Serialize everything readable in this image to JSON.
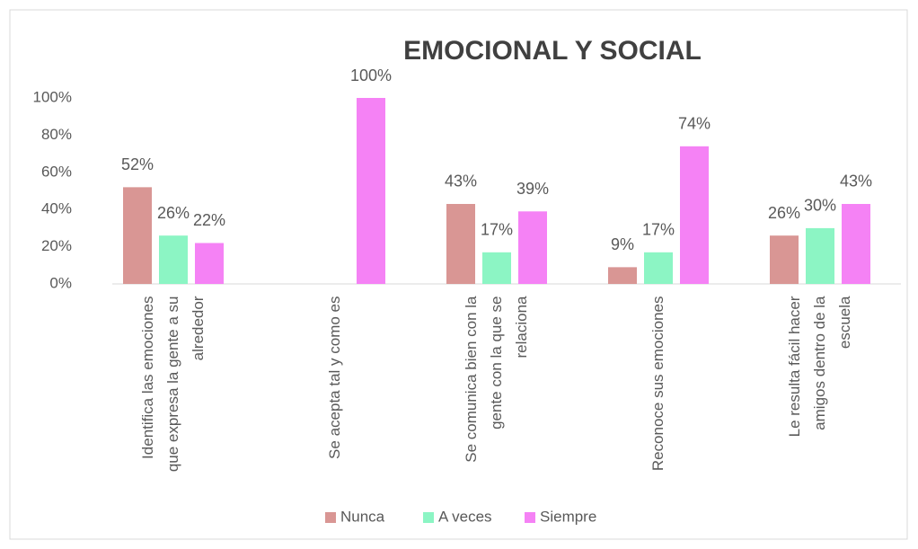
{
  "chart_data": {
    "type": "bar",
    "title": "EMOCIONAL Y SOCIAL",
    "categories": [
      "Identifica las emociones que expresa la gente a su alrededor",
      "Se acepta tal y como es",
      "Se comunica bien con la gente con la que se relaciona",
      "Reconoce sus emociones",
      "Le resulta fácil hacer amigos dentro de la escuela"
    ],
    "series": [
      {
        "name": "Nunca",
        "color": "#d99694",
        "values": [
          52,
          null,
          43,
          9,
          26
        ],
        "value_labels": [
          "52%",
          null,
          "43%",
          "9%",
          "26%"
        ]
      },
      {
        "name": "A veces",
        "color": "#8cf5c4",
        "values": [
          26,
          null,
          17,
          17,
          30
        ],
        "value_labels": [
          "26%",
          null,
          "17%",
          "17%",
          "30%"
        ]
      },
      {
        "name": "Siempre",
        "color": "#f582f5",
        "values": [
          22,
          100,
          39,
          74,
          43
        ],
        "value_labels": [
          "22%",
          "100%",
          "39%",
          "74%",
          "43%"
        ]
      }
    ],
    "ylim": [
      0,
      100
    ],
    "yticks": [
      {
        "value": 0,
        "label": "0%"
      },
      {
        "value": 20,
        "label": "20%"
      },
      {
        "value": 40,
        "label": "40%"
      },
      {
        "value": 60,
        "label": "60%"
      },
      {
        "value": 80,
        "label": "80%"
      },
      {
        "value": 100,
        "label": "100%"
      }
    ],
    "grid": false,
    "legend": "bottom"
  }
}
